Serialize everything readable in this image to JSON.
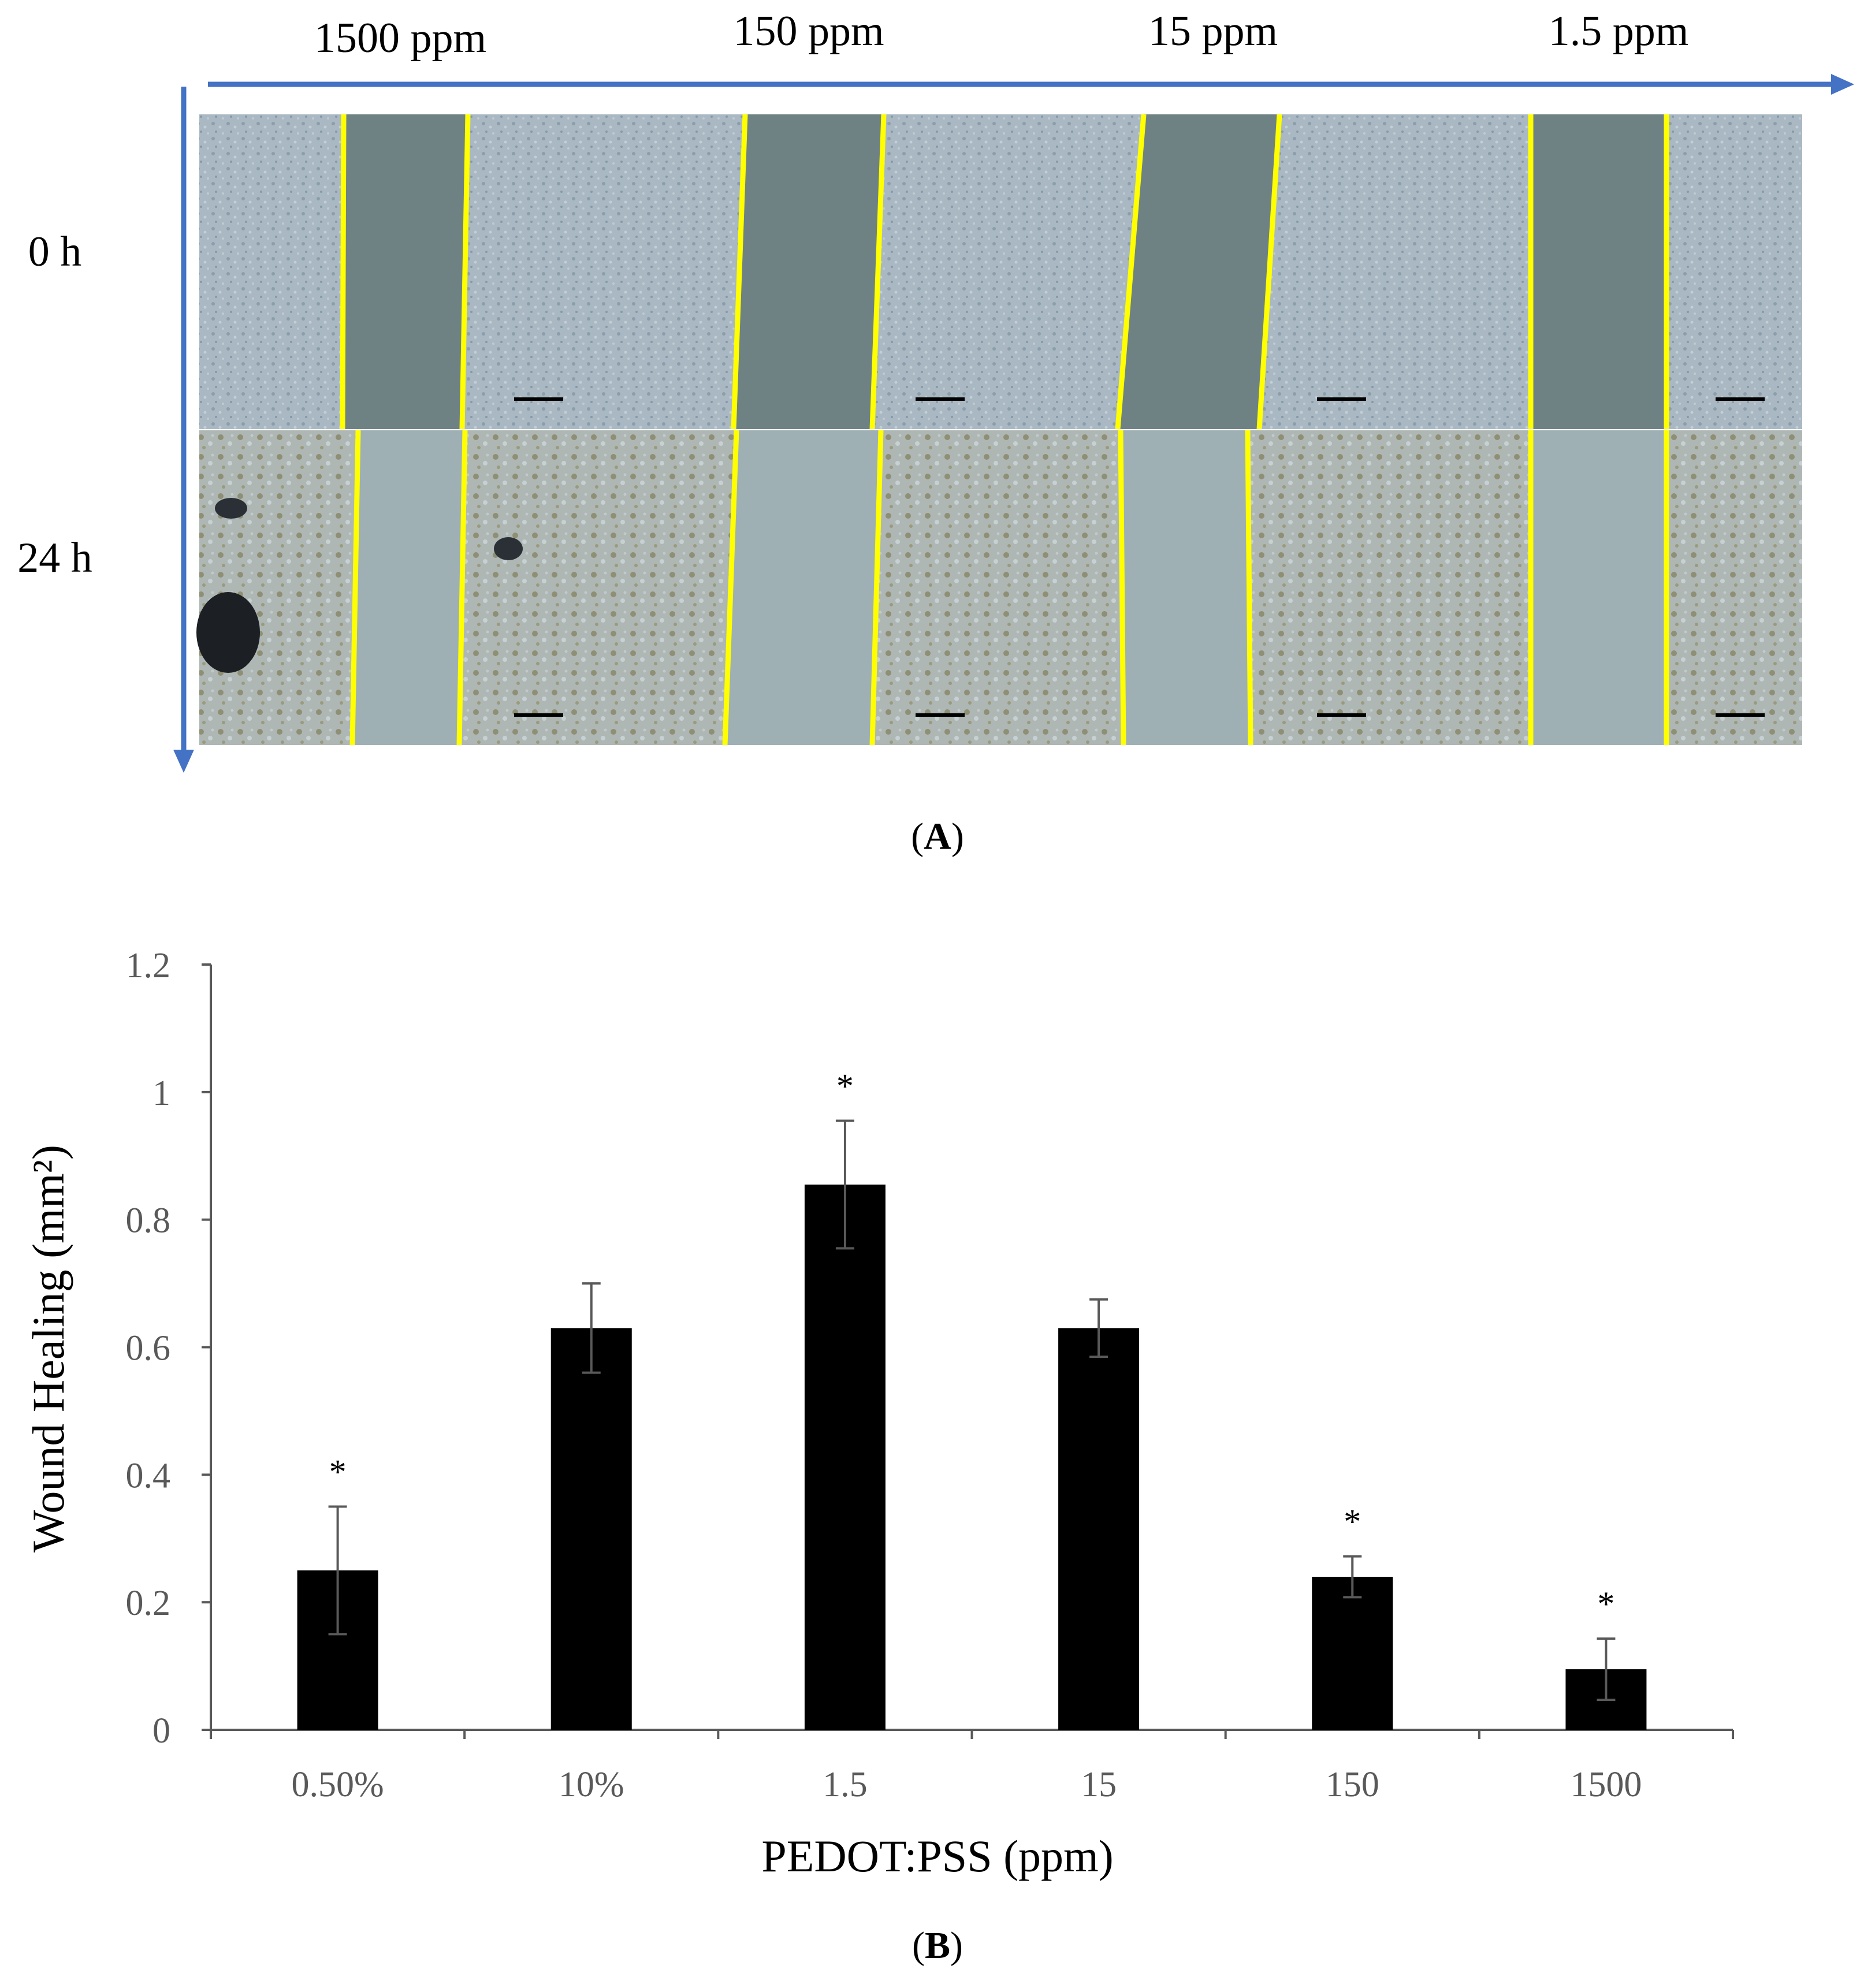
{
  "panel_a": {
    "column_labels": [
      "1500 ppm",
      "150 ppm",
      "15 ppm",
      "1.5 ppm"
    ],
    "row_labels": [
      "0 h",
      "24 h"
    ],
    "caption_letter": "A",
    "colors": {
      "axis_arrow": "#4472c4",
      "wound_edge": "#ffff00"
    }
  },
  "panel_b": {
    "caption_letter": "B"
  },
  "chart_data": {
    "type": "bar",
    "categories": [
      "0.50%",
      "10%",
      "1.5",
      "15",
      "150",
      "1500"
    ],
    "values": [
      0.25,
      0.63,
      0.855,
      0.63,
      0.24,
      0.095
    ],
    "errors": [
      0.1,
      0.07,
      0.1,
      0.045,
      0.032,
      0.048
    ],
    "significant": [
      true,
      false,
      true,
      false,
      true,
      true
    ],
    "significance_marker": "*",
    "xlabel": "PEDOT:PSS (ppm)",
    "ylabel": "Wound Healing (mm²)",
    "ylim": [
      0,
      1.2
    ],
    "yticks": [
      0,
      0.2,
      0.4,
      0.6,
      0.8,
      1,
      1.2
    ],
    "ytick_labels": [
      "0",
      "0.2",
      "0.4",
      "0.6",
      "0.8",
      "1",
      "1.2"
    ],
    "grid": false,
    "bar_color": "#000000"
  }
}
